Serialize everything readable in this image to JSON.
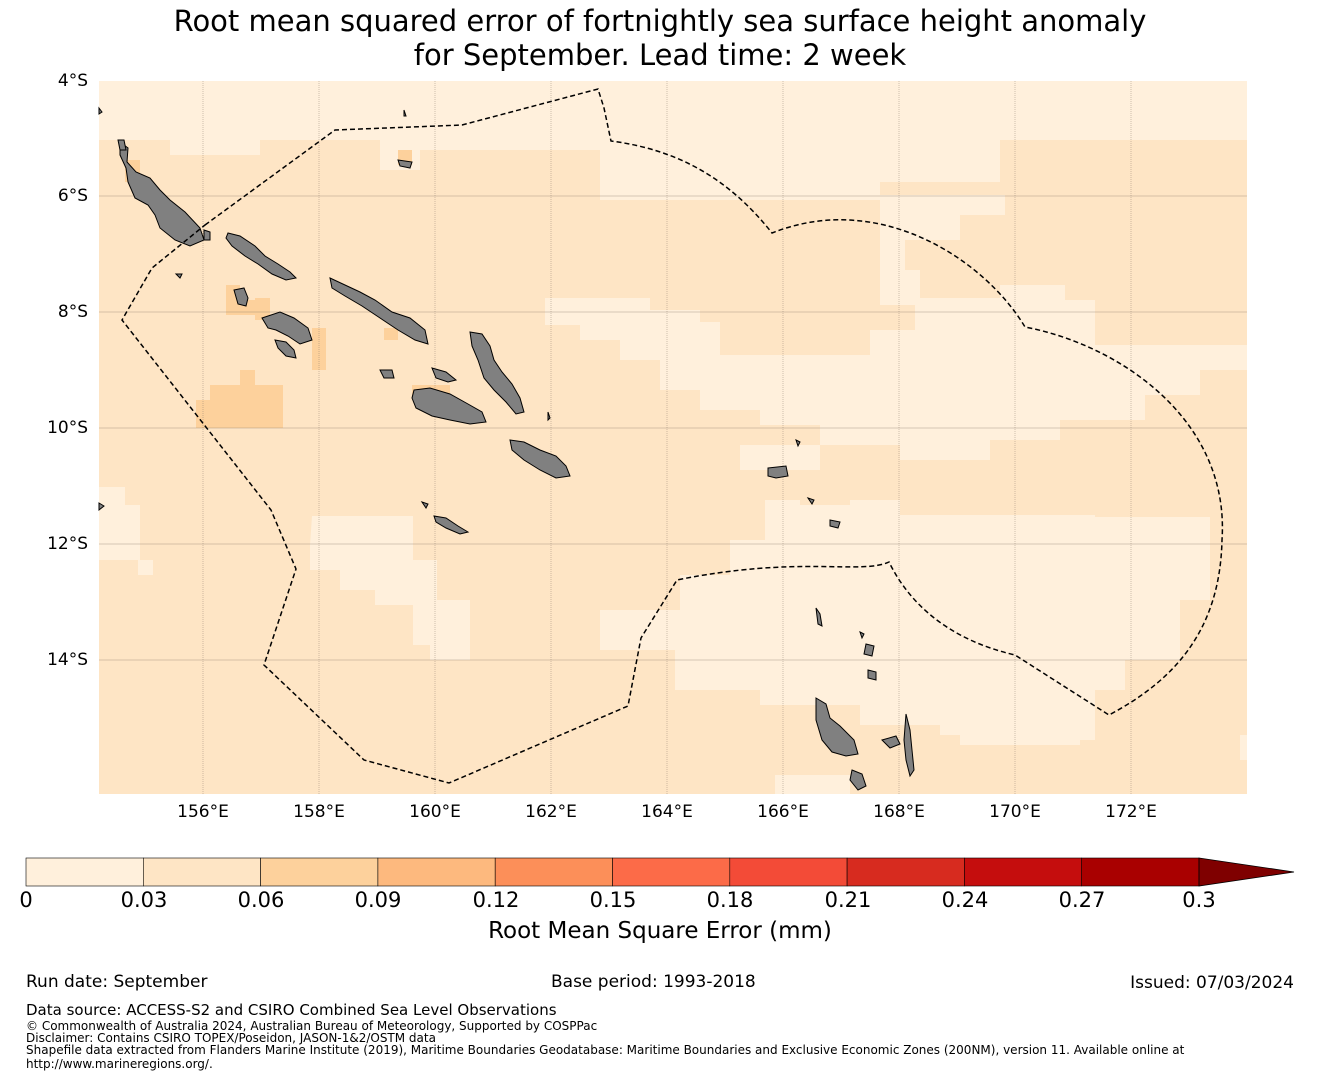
{
  "title_line1": "Root mean squared error of fortnightly sea surface height anomaly",
  "title_line2": "for September. Lead time: 2 week",
  "lat_labels": [
    "4°S",
    "6°S",
    "8°S",
    "10°S",
    "12°S",
    "14°S"
  ],
  "lon_labels": [
    "156°E",
    "158°E",
    "160°E",
    "162°E",
    "164°E",
    "166°E",
    "168°E",
    "170°E",
    "172°E"
  ],
  "colorbar": {
    "ticks": [
      "0",
      "0.03",
      "0.06",
      "0.09",
      "0.12",
      "0.15",
      "0.18",
      "0.21",
      "0.24",
      "0.27",
      "0.3"
    ],
    "colors": [
      "#fff0dc",
      "#fee5c5",
      "#fdd19c",
      "#fdb97e",
      "#fc8f59",
      "#fc6b48",
      "#f34b37",
      "#d72b1f",
      "#c50d0d",
      "#a90000"
    ],
    "over_color": "#7f0000",
    "label": "Root Mean Square Error (mm)"
  },
  "map_colors": {
    "low": "#fff0dc",
    "mid": "#fee5c5",
    "high": "#fdd19c",
    "land": "#808080"
  },
  "footer": {
    "run_date": "Run date: September",
    "base_period": "Base period: 1993-2018",
    "issued": "Issued: 07/03/2024",
    "data_source": "Data source: ACCESS-S2 and CSIRO Combined Sea Level Observations",
    "copyright": "© Commonwealth of Australia 2024, Australian Bureau of Meteorology, Supported by COSPPac",
    "disclaimer": "Disclaimer: Contains CSIRO TOPEX/Poseidon, JASON-1&2/OSTM data",
    "shapefile1": "Shapefile data extracted from Flanders Marine Institute (2019), Maritime Boundaries Geodatabase: Maritime Boundaries and Exclusive Economic Zones (200NM), version 11. Available online at",
    "shapefile2": "http://www.marineregions.org/."
  }
}
